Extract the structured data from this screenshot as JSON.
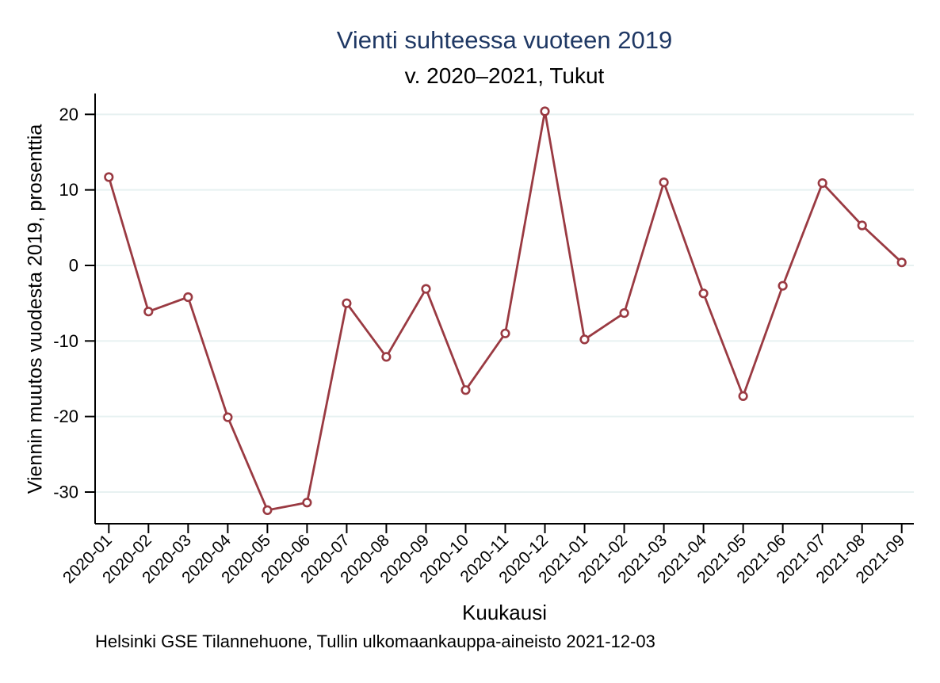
{
  "page": {
    "background": "#ffffff"
  },
  "chart_data": {
    "type": "line",
    "title": "Vienti suhteessa vuoteen 2019",
    "subtitle": "v. 2020–2021, Tukut",
    "xlabel": "Kuukausi",
    "ylabel": "Viennin muutos vuodesta 2019, prosenttia",
    "caption": "Helsinki GSE Tilannehuone, Tullin ulkomaankauppa-aineisto 2021-12-03",
    "categories": [
      "2020-01",
      "2020-02",
      "2020-03",
      "2020-04",
      "2020-05",
      "2020-06",
      "2020-07",
      "2020-08",
      "2020-09",
      "2020-10",
      "2020-11",
      "2020-12",
      "2021-01",
      "2021-02",
      "2021-03",
      "2021-04",
      "2021-05",
      "2021-06",
      "2021-07",
      "2021-08",
      "2021-09"
    ],
    "values": [
      11.7,
      -6.1,
      -4.2,
      -20.1,
      -32.4,
      -31.4,
      -5.0,
      -12.1,
      -3.1,
      -16.5,
      -9.0,
      20.4,
      -9.8,
      -6.3,
      11.0,
      -3.7,
      -17.3,
      -2.7,
      10.9,
      5.3,
      0.4
    ],
    "yticks": [
      20,
      10,
      0,
      -10,
      -20,
      -30
    ],
    "ylim": [
      -34.5,
      22
    ],
    "grid": true,
    "legend": "none",
    "marker": "open-circle",
    "colors": {
      "line": "#9a3a42",
      "marker_fill": "#ffffff",
      "grid": "#e7f1f1",
      "axis": "#000000",
      "title": "#1f3864",
      "text": "#000000"
    }
  }
}
